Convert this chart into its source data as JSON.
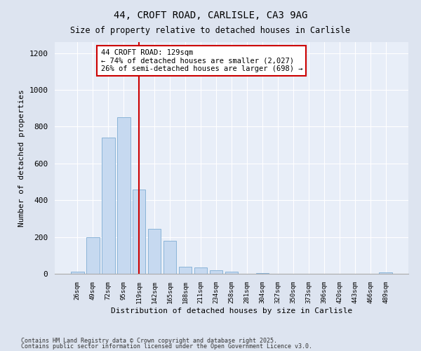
{
  "title1": "44, CROFT ROAD, CARLISLE, CA3 9AG",
  "title2": "Size of property relative to detached houses in Carlisle",
  "xlabel": "Distribution of detached houses by size in Carlisle",
  "ylabel": "Number of detached properties",
  "categories": [
    "26sqm",
    "49sqm",
    "72sqm",
    "95sqm",
    "119sqm",
    "142sqm",
    "165sqm",
    "188sqm",
    "211sqm",
    "234sqm",
    "258sqm",
    "281sqm",
    "304sqm",
    "327sqm",
    "350sqm",
    "373sqm",
    "396sqm",
    "420sqm",
    "443sqm",
    "466sqm",
    "489sqm"
  ],
  "values": [
    10,
    200,
    740,
    850,
    460,
    245,
    180,
    38,
    35,
    18,
    10,
    0,
    2,
    0,
    0,
    0,
    0,
    0,
    0,
    0,
    8
  ],
  "bar_color": "#c6d9f0",
  "bar_edge_color": "#8ab4d8",
  "vline_x_index": 4,
  "vline_color": "#cc0000",
  "annotation_text": "44 CROFT ROAD: 129sqm\n← 74% of detached houses are smaller (2,027)\n26% of semi-detached houses are larger (698) →",
  "annotation_box_color": "#ffffff",
  "annotation_box_edge_color": "#cc0000",
  "ylim": [
    0,
    1260
  ],
  "yticks": [
    0,
    200,
    400,
    600,
    800,
    1000,
    1200
  ],
  "footer1": "Contains HM Land Registry data © Crown copyright and database right 2025.",
  "footer2": "Contains public sector information licensed under the Open Government Licence v3.0.",
  "bg_color": "#dde4f0",
  "plot_bg_color": "#e8eef8"
}
